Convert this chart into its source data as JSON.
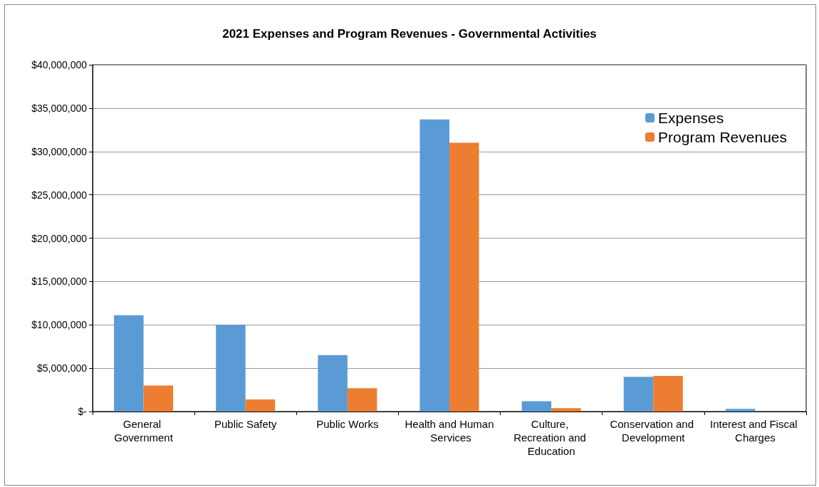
{
  "chart_data": {
    "type": "bar",
    "title": "2021 Expenses and Program Revenues - Governmental Activities",
    "categories": [
      "General Government",
      "Public Safety",
      "Public Works",
      "Health and Human Services",
      "Culture, Recreation and Education",
      "Conservation and Development",
      "Interest and Fiscal Charges"
    ],
    "series": [
      {
        "name": "Expenses",
        "color": "#5b9bd5",
        "values": [
          11100000,
          10000000,
          6500000,
          33700000,
          1200000,
          4000000,
          300000
        ]
      },
      {
        "name": "Program Revenues",
        "color": "#ed7d31",
        "values": [
          3000000,
          1400000,
          2700000,
          31000000,
          400000,
          4100000,
          0
        ]
      }
    ],
    "ylim": [
      0,
      40000000
    ],
    "yticks": [
      {
        "value": 0,
        "label": "$-"
      },
      {
        "value": 5000000,
        "label": "$5,000,000"
      },
      {
        "value": 10000000,
        "label": "$10,000,000"
      },
      {
        "value": 15000000,
        "label": "$15,000,000"
      },
      {
        "value": 20000000,
        "label": "$20,000,000"
      },
      {
        "value": 25000000,
        "label": "$25,000,000"
      },
      {
        "value": 30000000,
        "label": "$30,000,000"
      },
      {
        "value": 35000000,
        "label": "$35,000,000"
      },
      {
        "value": 40000000,
        "label": "$40,000,000"
      }
    ],
    "grid": "y",
    "legend": "top right"
  }
}
